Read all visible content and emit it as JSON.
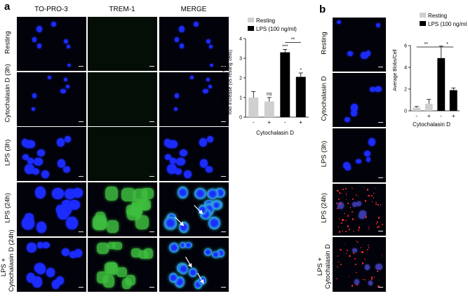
{
  "panel_a": {
    "letter": "a",
    "columns": [
      "TO-PRO-3",
      "TREM-1",
      "MERGE"
    ],
    "rows": [
      "Resting",
      "Cytochalasin D (3h)",
      "LPS (3h)",
      "LPS (24h)",
      "LPS +\nCytochalasin D (24h)"
    ]
  },
  "panel_b": {
    "letter": "b",
    "rows": [
      "Resting",
      "Cytochalasin D",
      "LPS (3h)",
      "LPS (24h)",
      "LPS +\nCytochalasin D"
    ]
  },
  "colors": {
    "resting": "#cfcfcf",
    "lps": "#000000",
    "nucleus": "#1c2cff",
    "trem": "#3fbf3f",
    "merge_cyan": "#2fb7d6",
    "blob": "#ff2a2a"
  },
  "chart_data": [
    {
      "type": "bar",
      "ylabel_line1": "TREM-1 expression",
      "ylabel_line2": "fold increase (vs resting cells)",
      "xlabel": "Cytochalasin D",
      "categories": [
        "-",
        "+",
        "-",
        "+"
      ],
      "ylim": [
        0,
        4
      ],
      "yticks": [
        0,
        1,
        2,
        3,
        4
      ],
      "series": [
        {
          "name": "Resting",
          "values": [
            1.0,
            0.8,
            null,
            null
          ],
          "errors": [
            0.3,
            0.2,
            null,
            null
          ]
        },
        {
          "name": "LPS (100 ng/ml)",
          "values": [
            null,
            null,
            3.3,
            2.05
          ],
          "errors": [
            null,
            null,
            0.15,
            0.2
          ]
        }
      ],
      "annotations": [
        "ns",
        "***",
        "*",
        "**"
      ],
      "legend": "top-left"
    },
    {
      "type": "bar",
      "ylabel": "Average Blobs/Cell",
      "xlabel": "Cytochalasin D",
      "categories": [
        "-",
        "+",
        "-",
        "+"
      ],
      "ylim": [
        0,
        6
      ],
      "yticks": [
        0,
        2,
        4,
        6
      ],
      "series": [
        {
          "name": "Resting",
          "values": [
            0.3,
            0.65,
            null,
            null
          ],
          "errors": [
            0.1,
            0.4,
            null,
            null
          ]
        },
        {
          "name": "LPS (100 ng/ml)",
          "values": [
            null,
            null,
            4.85,
            1.9
          ],
          "errors": [
            null,
            null,
            1.1,
            0.2
          ]
        }
      ],
      "annotations": [
        "**",
        "*"
      ],
      "legend": "top-left"
    }
  ]
}
